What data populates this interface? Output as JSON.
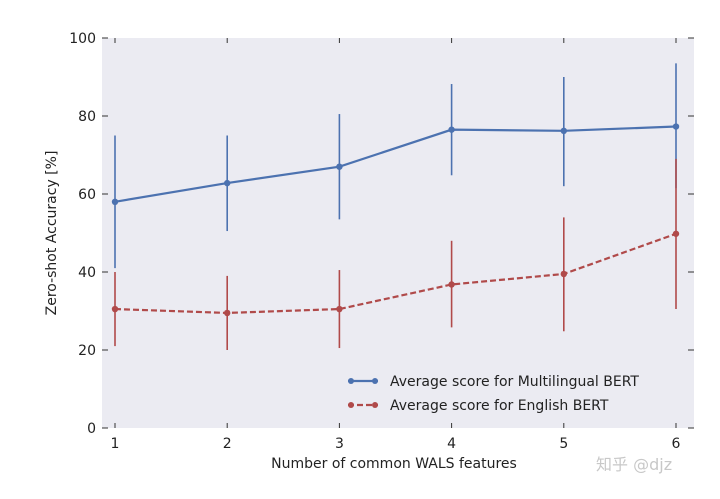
{
  "chart_data": {
    "type": "line",
    "title": "",
    "xlabel": "Number of common WALS features",
    "ylabel": "Zero-shot Accuracy [%]",
    "x": [
      1,
      2,
      3,
      4,
      5,
      6
    ],
    "xlim": [
      1,
      6
    ],
    "ylim": [
      0,
      100
    ],
    "x_ticks": [
      "1",
      "2",
      "3",
      "4",
      "5",
      "6"
    ],
    "y_ticks": [
      "0",
      "20",
      "40",
      "60",
      "80",
      "100"
    ],
    "grid": false,
    "legend_position": "bottom-right",
    "series": [
      {
        "name": "Average score for Multilingual BERT",
        "color": "#4c72b0",
        "line_style": "solid",
        "values": [
          58,
          62.8,
          67,
          76.5,
          76.2,
          77.3
        ],
        "error_low": [
          41,
          50.5,
          53.5,
          64.8,
          62,
          61.5
        ],
        "error_high": [
          75,
          75,
          80.5,
          88.2,
          90,
          93.5
        ]
      },
      {
        "name": "Average score for English BERT",
        "color": "#b04a4a",
        "line_style": "dashed",
        "values": [
          30.5,
          29.5,
          30.5,
          36.8,
          39.5,
          49.8
        ],
        "error_low": [
          21,
          20,
          20.5,
          25.8,
          24.8,
          30.5
        ],
        "error_high": [
          40,
          39,
          40.5,
          48,
          54,
          69
        ]
      }
    ]
  },
  "watermark": "知乎 @djz"
}
